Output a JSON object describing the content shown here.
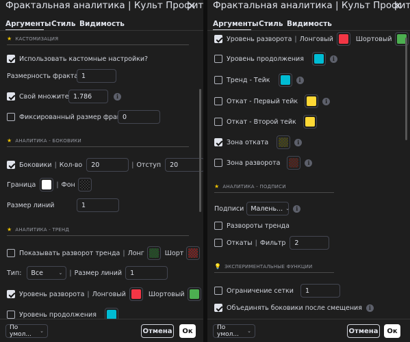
{
  "colors": {
    "red": "#f23645",
    "green": "#4caf50",
    "cyan": "#00bcd4",
    "yellow": "#fdd835",
    "white": "#ffffff",
    "dark_green": "#1b5e20",
    "dark_red": "#8b1a1a",
    "olive_checker": "#4a4a10",
    "red_checker": "#5a1a12"
  },
  "dialog": {
    "title": "Фрактальная аналитика | Культ Профита |",
    "tabs": [
      "Аргументы",
      "Стиль",
      "Видимость"
    ],
    "footer": {
      "defaults": "По умол...",
      "cancel": "Отмена",
      "ok": "Ок"
    }
  },
  "left": {
    "sec_custom": "КАСТОМИЗАЦИЯ",
    "use_custom": "Использовать кастомные настройки?",
    "fractal_dim_label": "Размерность фрактала",
    "fractal_dim_value": "1",
    "own_mult_label": "Свой множитель",
    "own_mult_value": "1.786",
    "fixed_size_label": "Фиксированный размер фрактала:",
    "fixed_size_value": "0",
    "sec_sideways": "АНАЛИТИКА - БОКОВИКИ",
    "sideways_label": "Боковики",
    "count_label": "Кол-во",
    "count_value": "20",
    "indent_label": "Отступ",
    "indent_value": "20",
    "border_label": "Граница",
    "bg_label": "Фон",
    "line_size_label": "Размер линий",
    "line_size_value": "1",
    "sec_trend": "АНАЛИТИКА - ТРЕНД",
    "show_reversal": "Показывать разворот тренда",
    "long_label": "Лонг",
    "short_label": "Шорт",
    "type_label": "Тип:",
    "type_value": "Все",
    "line_size2_label": "Размер линий",
    "line_size2_value": "1",
    "reversal_level": "Уровень разворота",
    "longish": "Лонговый",
    "shortish": "Шортовый",
    "continuation_level": "Уровень продолжения"
  },
  "right": {
    "reversal_level": "Уровень разворота",
    "longish": "Лонговый",
    "shortish": "Шортовый",
    "continuation_level": "Уровень продолжения",
    "trend_take": "Тренд - Тейк",
    "pullback_first": "Откат - Первый тейк",
    "pullback_second": "Откат - Второй тейк",
    "pullback_zone": "Зона отката",
    "reversal_zone": "Зона разворота",
    "sec_labels": "АНАЛИТИКА - ПОДПИСИ",
    "labels_label": "Подписи",
    "labels_value": "Малень...",
    "trend_reversals": "Развороты тренда",
    "pullbacks": "Откаты",
    "filter_label": "Фильтр",
    "filter_value": "2",
    "sec_experimental": "ЭКСПЕРИМЕНТАЛЬНЫЕ ФУНКЦИИ",
    "grid_limit": "Ограничение сетки",
    "grid_limit_value": "1",
    "merge_sideways": "Объединять боковики после смещения"
  }
}
